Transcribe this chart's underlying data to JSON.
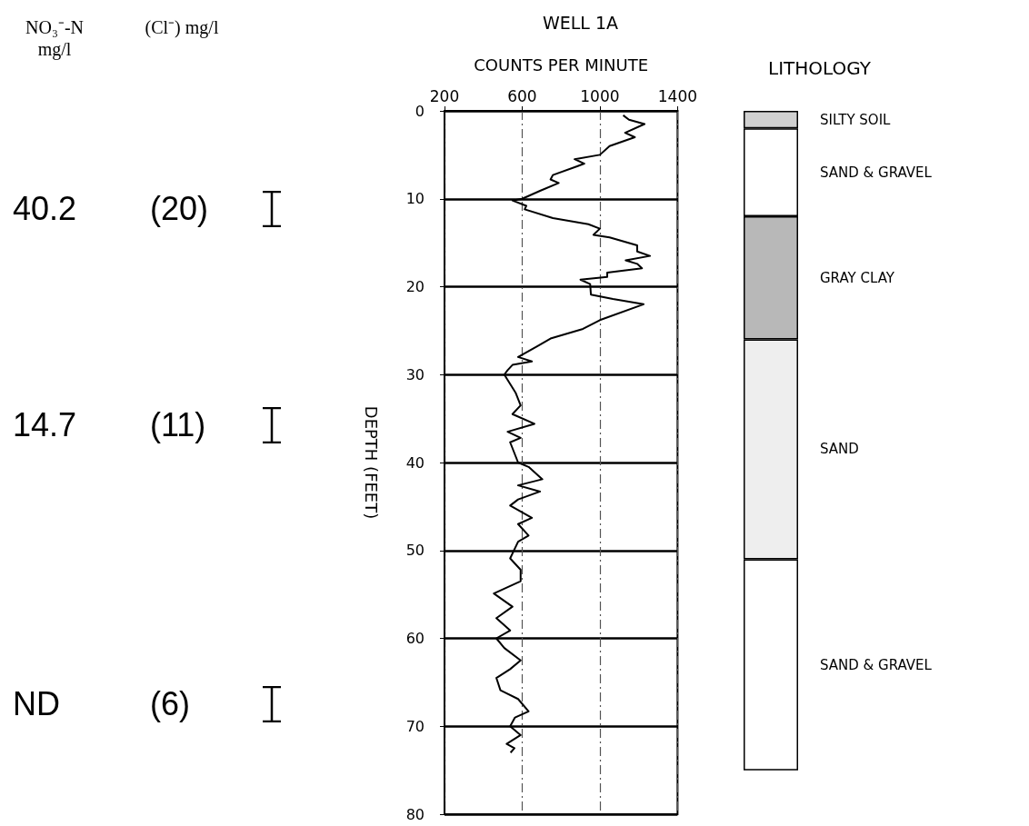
{
  "chart_data": [
    {
      "type": "line",
      "title": "WELL 1A",
      "xlabel": "COUNTS PER MINUTE",
      "ylabel": "DEPTH (FEET)",
      "x": [
        1120,
        1150,
        1230,
        1130,
        1180,
        1050,
        1000,
        870,
        920,
        883,
        758,
        746,
        788,
        692,
        600,
        550,
        621,
        613,
        758,
        941,
        1000,
        967,
        1050,
        1192,
        1192,
        1258,
        1133,
        1192,
        1217,
        1038,
        1038,
        900,
        950,
        954,
        1067,
        1225,
        1000,
        913,
        746,
        675,
        579,
        650,
        550,
        525,
        508,
        567,
        592,
        550,
        663,
        525,
        592,
        538,
        579,
        633,
        704,
        579,
        692,
        579,
        538,
        650,
        579,
        633,
        579,
        538,
        592,
        592,
        454,
        550,
        467,
        538,
        467,
        508,
        592,
        538,
        467,
        488,
        579,
        633,
        563,
        538,
        592,
        520,
        560,
        540
      ],
      "values": [
        0.5,
        1,
        1.5,
        2.5,
        3,
        4,
        5,
        5.5,
        6,
        6.3,
        7.3,
        7.8,
        8.2,
        9.1,
        10,
        10.2,
        10.8,
        11.2,
        12.2,
        12.9,
        13.4,
        14.1,
        14.4,
        15.3,
        16,
        16.5,
        17,
        17.4,
        17.9,
        18.4,
        18.9,
        19.2,
        19.7,
        20.9,
        21.4,
        22,
        23.8,
        24.8,
        25.9,
        26.8,
        28,
        28.5,
        28.9,
        29.5,
        30,
        32.1,
        33.5,
        34.5,
        35.6,
        36.5,
        37.2,
        37.7,
        40,
        40.5,
        41.9,
        42.6,
        43.3,
        44.2,
        44.9,
        46.3,
        47,
        48.3,
        49,
        50.9,
        52.2,
        53.5,
        54.9,
        56.4,
        57.7,
        59.1,
        60,
        61.1,
        62.5,
        63.5,
        64.5,
        65.9,
        66.9,
        68.3,
        69,
        70,
        71,
        72,
        72.5,
        73
      ],
      "color": "#000000",
      "xlim": [
        200,
        1400
      ],
      "xticks": [
        200,
        600,
        1000,
        1400
      ],
      "ylim": [
        80,
        0
      ],
      "yticks": [
        0,
        10,
        20,
        30,
        40,
        50,
        60,
        70,
        80
      ],
      "grid": true,
      "annotations": [
        "NO₃⁻-N mg/l",
        "(Cl⁻) mg/l",
        "40.2",
        "(20)",
        "14.7",
        "(11)",
        "ND",
        "(6)"
      ]
    },
    {
      "type": "bar",
      "stacked": true,
      "title": "LITHOLOGY",
      "categories": [
        null
      ],
      "ylim": [
        80,
        0
      ],
      "tick_labels": false,
      "series": [
        {
          "name": "SILTY SOIL",
          "color": "#d0d0d0",
          "values": [
            2
          ]
        },
        {
          "name": "SAND & GRAVEL",
          "color": "#ffffff",
          "values": [
            10
          ]
        },
        {
          "name": "GRAY CLAY",
          "color": "#b8b8b8",
          "values": [
            14
          ]
        },
        {
          "name": "SAND",
          "color": "#eeeeee",
          "values": [
            25
          ]
        },
        {
          "name": "SAND & GRAVEL",
          "color": "#ffffff",
          "values": [
            24
          ]
        }
      ]
    }
  ]
}
